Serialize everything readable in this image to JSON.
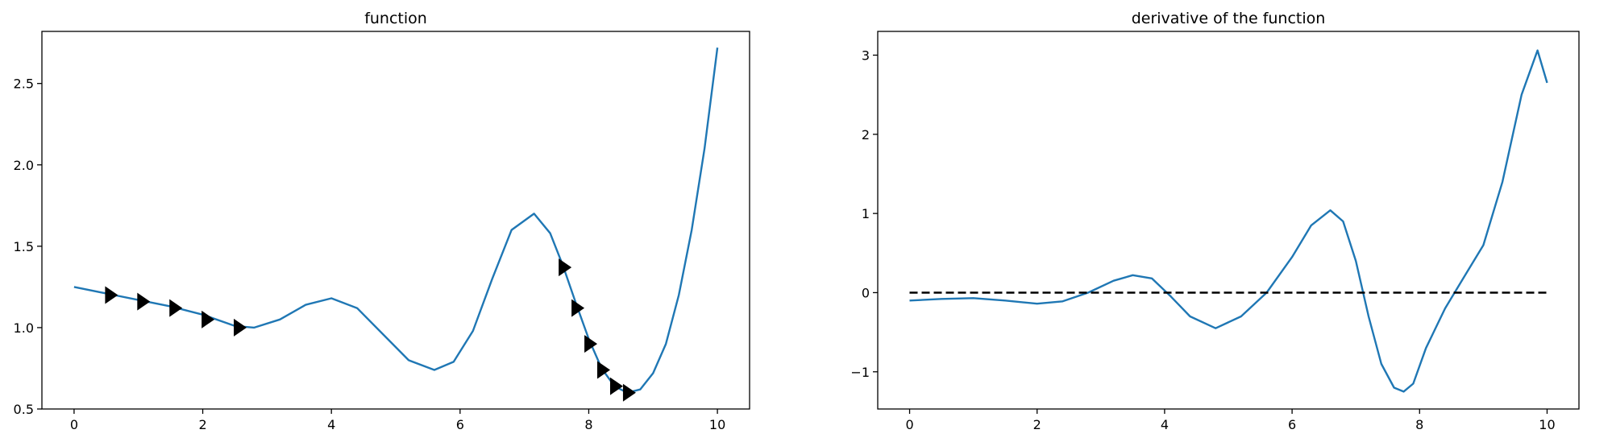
{
  "chart_data": [
    {
      "type": "line",
      "title": "function",
      "xlabel": "",
      "ylabel": "",
      "xlim": [
        -0.5,
        10.5
      ],
      "ylim": [
        0.5,
        2.82
      ],
      "x_ticks": [
        0,
        2,
        4,
        6,
        8,
        10
      ],
      "y_ticks": [
        0.5,
        1.0,
        1.5,
        2.0,
        2.5
      ],
      "x_tick_labels": [
        "0",
        "2",
        "4",
        "6",
        "8",
        "10"
      ],
      "y_tick_labels": [
        "0.5",
        "1.0",
        "1.5",
        "2.0",
        "2.5"
      ],
      "grid": false,
      "line_color": "#1f77b4",
      "marker_color": "#000000",
      "series": [
        {
          "x": [
            0,
            0.5,
            1.0,
            1.5,
            2.0,
            2.5,
            2.8,
            3.2,
            3.6,
            4.0,
            4.4,
            4.8,
            5.2,
            5.6,
            5.9,
            6.2,
            6.5,
            6.8,
            7.15,
            7.4,
            7.6,
            7.8,
            8.0,
            8.2,
            8.4,
            8.6,
            8.8,
            9.0,
            9.2,
            9.4,
            9.6,
            9.8,
            10.0
          ],
          "y": [
            1.25,
            1.21,
            1.17,
            1.13,
            1.08,
            1.01,
            1.0,
            1.05,
            1.14,
            1.18,
            1.12,
            0.96,
            0.8,
            0.74,
            0.79,
            0.98,
            1.3,
            1.6,
            1.7,
            1.58,
            1.38,
            1.15,
            0.93,
            0.75,
            0.64,
            0.6,
            0.62,
            0.72,
            0.9,
            1.2,
            1.6,
            2.1,
            2.72
          ]
        }
      ],
      "markers": {
        "shape": "triangle-right",
        "points": [
          {
            "x": 0.57,
            "y": 1.2
          },
          {
            "x": 1.07,
            "y": 1.16
          },
          {
            "x": 1.57,
            "y": 1.12
          },
          {
            "x": 2.07,
            "y": 1.05
          },
          {
            "x": 2.57,
            "y": 1.0
          },
          {
            "x": 7.62,
            "y": 1.37
          },
          {
            "x": 7.82,
            "y": 1.12
          },
          {
            "x": 8.02,
            "y": 0.9
          },
          {
            "x": 8.22,
            "y": 0.74
          },
          {
            "x": 8.42,
            "y": 0.64
          },
          {
            "x": 8.62,
            "y": 0.6
          }
        ]
      }
    },
    {
      "type": "line",
      "title": "derivative of the function",
      "xlabel": "",
      "ylabel": "",
      "xlim": [
        -0.5,
        10.5
      ],
      "ylim": [
        -1.47,
        3.3
      ],
      "x_ticks": [
        0,
        2,
        4,
        6,
        8,
        10
      ],
      "y_ticks": [
        -1,
        0,
        1,
        2,
        3
      ],
      "x_tick_labels": [
        "0",
        "2",
        "4",
        "6",
        "8",
        "10"
      ],
      "y_tick_labels": [
        "−1",
        "0",
        "1",
        "2",
        "3"
      ],
      "grid": false,
      "line_color": "#1f77b4",
      "series": [
        {
          "x": [
            0,
            0.5,
            1.0,
            1.5,
            2.0,
            2.4,
            2.8,
            3.2,
            3.5,
            3.8,
            4.1,
            4.4,
            4.8,
            5.2,
            5.6,
            6.0,
            6.3,
            6.6,
            6.8,
            7.0,
            7.2,
            7.4,
            7.6,
            7.75,
            7.9,
            8.1,
            8.4,
            8.7,
            9.0,
            9.3,
            9.6,
            9.85,
            10.0
          ],
          "y": [
            -0.1,
            -0.08,
            -0.07,
            -0.1,
            -0.14,
            -0.11,
            0.0,
            0.15,
            0.22,
            0.18,
            -0.05,
            -0.3,
            -0.45,
            -0.3,
            0.0,
            0.45,
            0.85,
            1.04,
            0.9,
            0.4,
            -0.3,
            -0.9,
            -1.2,
            -1.25,
            -1.15,
            -0.7,
            -0.2,
            0.2,
            0.6,
            1.4,
            2.5,
            3.06,
            2.65
          ]
        },
        {
          "style": "dashed",
          "color": "#000000",
          "x": [
            0,
            10
          ],
          "y": [
            0,
            0
          ]
        }
      ]
    }
  ]
}
